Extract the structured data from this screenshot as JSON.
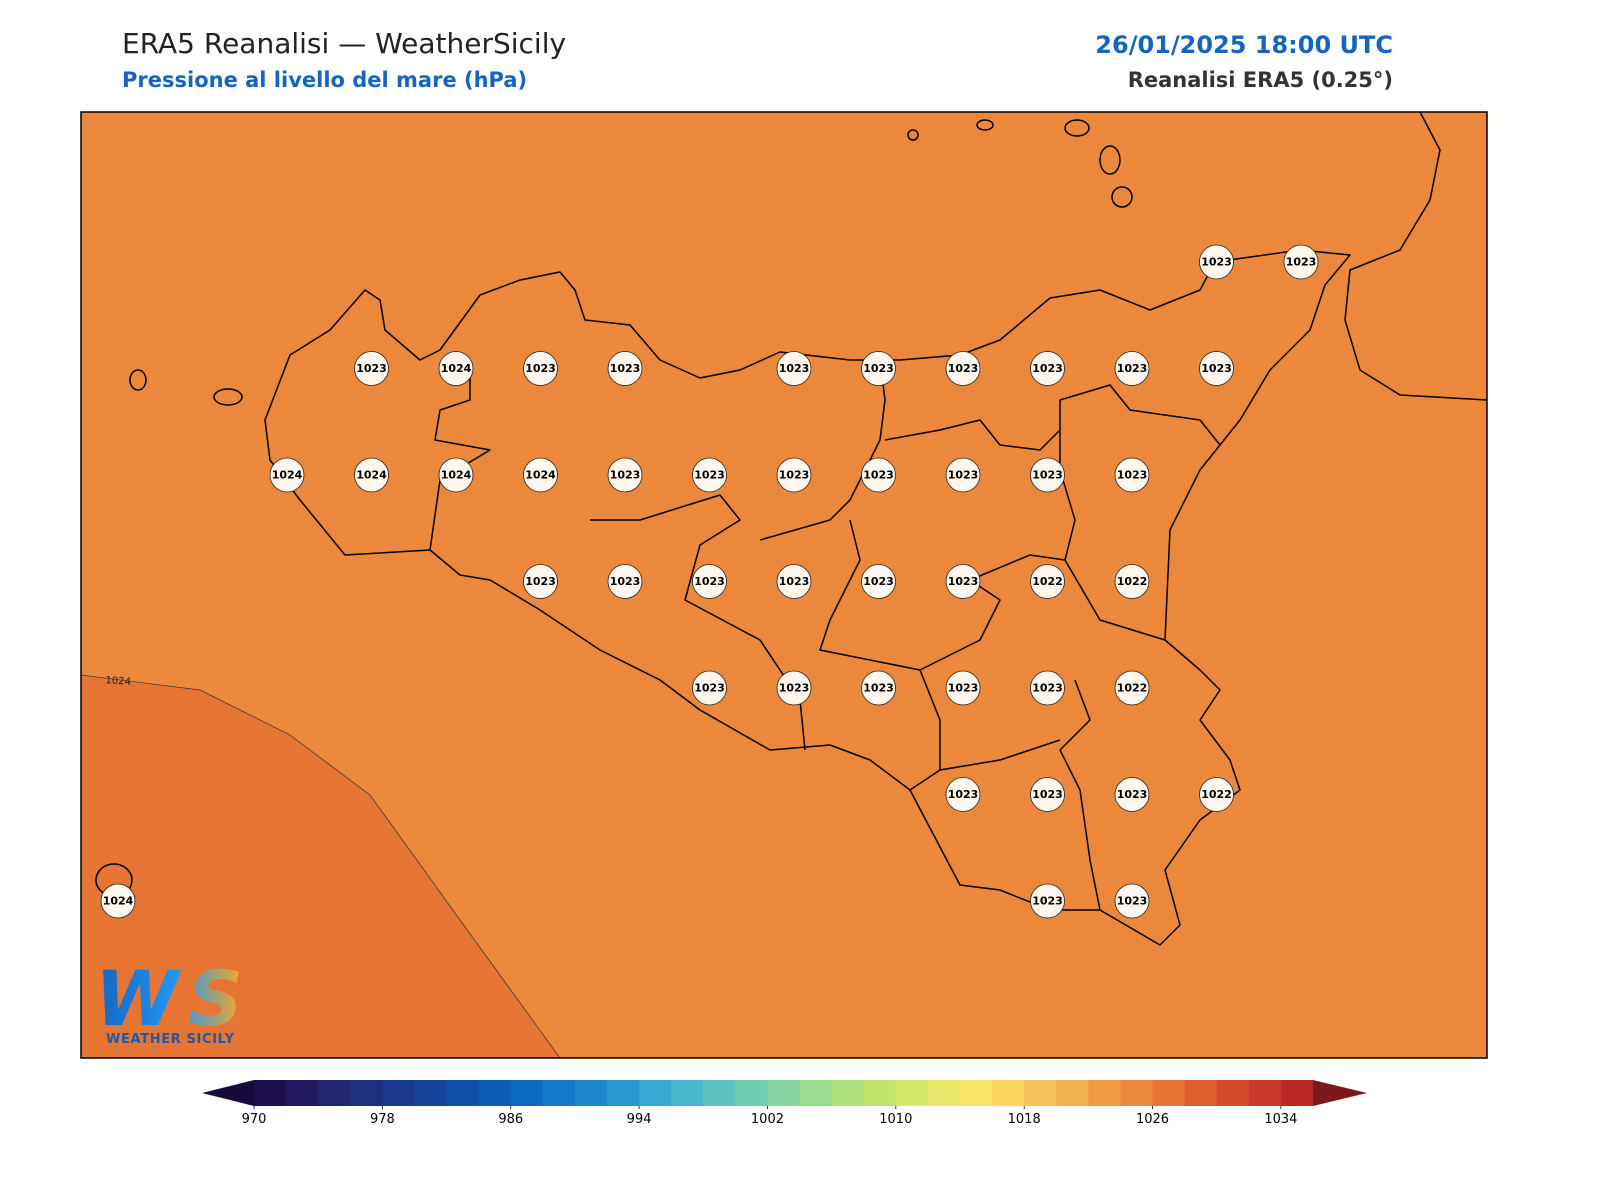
{
  "header": {
    "title": "ERA5 Reanalisi — WeatherSicily",
    "subtitle": "Pressione al livello del mare (hPa)",
    "datetime": "26/01/2025 18:00 UTC",
    "source": "Reanalisi ERA5 (0.25°)"
  },
  "map": {
    "fill_color": "#ec883b",
    "high_fill_color": "#e67432",
    "contour_label": "1024",
    "grid_rows": [
      [
        null,
        null,
        null,
        null,
        null,
        null,
        null,
        null,
        null,
        null,
        null,
        null,
        null,
        1023,
        1023
      ],
      [
        null,
        null,
        null,
        1023,
        1024,
        1023,
        1023,
        null,
        1023,
        1023,
        1023,
        1023,
        1023,
        1023,
        null
      ],
      [
        null,
        null,
        1024,
        1024,
        1024,
        1024,
        1023,
        1023,
        1023,
        1023,
        1023,
        1023,
        1023,
        null,
        null
      ],
      [
        null,
        null,
        null,
        null,
        null,
        1023,
        1023,
        1023,
        1023,
        1023,
        1023,
        1022,
        1022,
        null,
        null
      ],
      [
        null,
        null,
        null,
        null,
        null,
        null,
        null,
        1023,
        1023,
        1023,
        1023,
        1023,
        1022,
        null,
        null
      ],
      [
        null,
        null,
        null,
        null,
        null,
        null,
        null,
        null,
        null,
        null,
        1023,
        1023,
        1023,
        1022,
        null
      ],
      [
        1024,
        null,
        null,
        null,
        null,
        null,
        null,
        null,
        null,
        null,
        null,
        1023,
        1023,
        null,
        null
      ]
    ]
  },
  "colorbar": {
    "lim": [
      970,
      1036
    ],
    "ticks": [
      970,
      978,
      986,
      994,
      1002,
      1010,
      1018,
      1026,
      1034
    ],
    "colors": [
      "#1d0f4d",
      "#211a5e",
      "#222570",
      "#1f2f80",
      "#1b3a8f",
      "#16459c",
      "#1050aa",
      "#0b5db6",
      "#0b6bc0",
      "#1479c8",
      "#1f88cd",
      "#2a98d0",
      "#37a8cf",
      "#48b7c9",
      "#5cc3c0",
      "#6fcdb2",
      "#84d5a1",
      "#99dc8d",
      "#aee17b",
      "#c2e56e",
      "#d5e86b",
      "#e6e96a",
      "#f7e56a",
      "#fbd663",
      "#f8c35a",
      "#f3b050",
      "#ef9c45",
      "#ec883b",
      "#e67432",
      "#de602c",
      "#d34c29",
      "#c73a28",
      "#b92a27"
    ],
    "under_color": "#160b3a",
    "over_color": "#7a1a1c"
  },
  "logo": {
    "mark": "WS",
    "text": "WEATHER SICILY"
  }
}
